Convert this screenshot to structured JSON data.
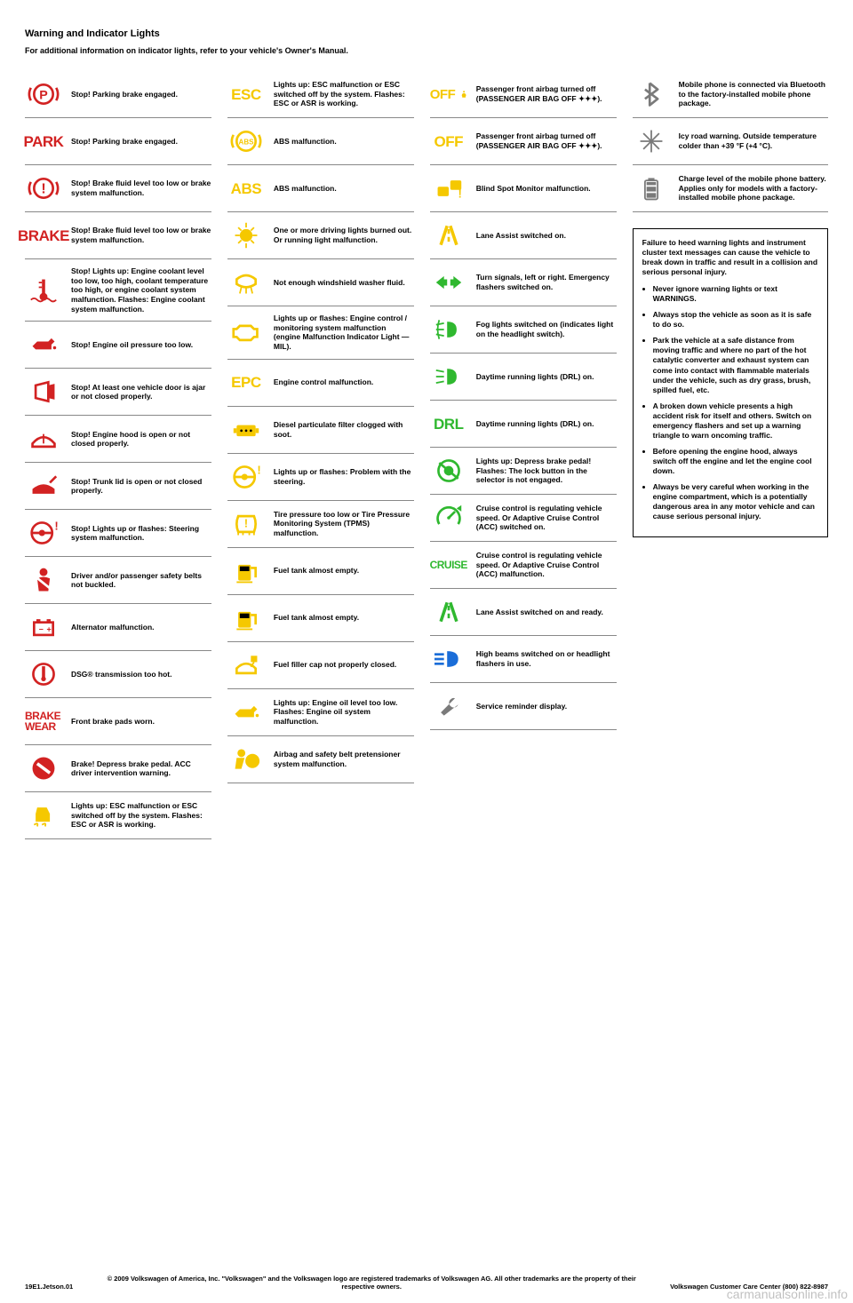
{
  "header": {
    "title": "Warning and Indicator Lights",
    "subtitle": "For additional information on indicator lights, refer to your vehicle's Owner's Manual."
  },
  "columns": [
    {
      "items": [
        {
          "color": "red",
          "icon": "parking-p-icon",
          "desc": "Stop! Parking brake engaged."
        },
        {
          "color": "red",
          "icon": "park-text-icon",
          "text": "PARK",
          "desc": "Stop! Parking brake engaged."
        },
        {
          "color": "red",
          "icon": "brake-circle-icon",
          "desc": "Stop! Brake fluid level too low or brake system malfunction."
        },
        {
          "color": "red",
          "icon": "brake-text-icon",
          "text": "BRAKE",
          "desc": "Stop! Brake fluid level too low or brake system malfunction."
        },
        {
          "color": "red",
          "icon": "coolant-temp-icon",
          "desc": "Stop! Lights up: Engine coolant level too low, too high, coolant temperature too high, or engine coolant system malfunction. Flashes: Engine coolant system malfunction."
        },
        {
          "color": "red",
          "icon": "oil-can-icon",
          "desc": "Stop! Engine oil pressure too low."
        },
        {
          "color": "red",
          "icon": "door-open-icon",
          "desc": "Stop! At least one vehicle door is ajar or not closed properly."
        },
        {
          "color": "red",
          "icon": "hood-open-icon",
          "desc": "Stop! Engine hood is open or not closed properly."
        },
        {
          "color": "red",
          "icon": "trunk-open-icon",
          "desc": "Stop! Trunk lid is open or not closed properly."
        },
        {
          "color": "red",
          "icon": "steering-wheel-icon",
          "desc": "Stop! Lights up or flashes: Steering system malfunction."
        },
        {
          "color": "red",
          "icon": "seatbelt-icon",
          "desc": "Driver and/or passenger safety belts not buckled."
        },
        {
          "color": "red",
          "icon": "battery-icon",
          "desc": "Alternator malfunction."
        },
        {
          "color": "red",
          "icon": "transmission-temp-icon",
          "desc": "DSG® transmission too hot."
        },
        {
          "color": "red",
          "icon": "brake-wear-text-icon",
          "text": "BRAKE WEAR",
          "desc": "Front brake pads worn."
        },
        {
          "color": "red",
          "icon": "acc-brake-icon",
          "desc": "Brake! Depress brake pedal. ACC driver intervention warning."
        },
        {
          "color": "yellow",
          "icon": "esc-car-icon",
          "desc": "Lights up: ESC malfunction or ESC switched off by the system. Flashes: ESC or ASR is working."
        }
      ]
    },
    {
      "items": [
        {
          "color": "yellow",
          "icon": "esc-text-icon",
          "text": "ESC",
          "desc": "Lights up: ESC malfunction or ESC switched off by the system. Flashes: ESC or ASR is working."
        },
        {
          "color": "yellow",
          "icon": "abs-circle-icon",
          "desc": "ABS malfunction."
        },
        {
          "color": "yellow",
          "icon": "abs-text-icon",
          "text": "ABS",
          "desc": "ABS malfunction."
        },
        {
          "color": "yellow",
          "icon": "bulb-icon",
          "desc": "One or more driving lights burned out. Or running light malfunction."
        },
        {
          "color": "yellow",
          "icon": "washer-fluid-icon",
          "desc": "Not enough windshield washer fluid."
        },
        {
          "color": "yellow",
          "icon": "check-engine-icon",
          "desc": "Lights up or flashes: Engine control / monitoring system malfunction (engine Malfunction Indicator Light — MIL)."
        },
        {
          "color": "yellow",
          "icon": "epc-text-icon",
          "text": "EPC",
          "desc": "Engine control malfunction."
        },
        {
          "color": "yellow",
          "icon": "dpf-icon",
          "desc": "Diesel particulate filter clogged with soot."
        },
        {
          "color": "yellow",
          "icon": "steering-yellow-icon",
          "desc": "Lights up or flashes: Problem with the steering."
        },
        {
          "color": "yellow",
          "icon": "tire-pressure-icon",
          "desc": "Tire pressure too low or Tire Pressure Monitoring System (TPMS) malfunction."
        },
        {
          "color": "yellow",
          "icon": "fuel-low-icon",
          "desc": "Fuel tank almost empty."
        },
        {
          "color": "yellow",
          "icon": "fuel-low2-icon",
          "desc": "Fuel tank almost empty."
        },
        {
          "color": "yellow",
          "icon": "fuel-cap-icon",
          "desc": "Fuel filler cap not properly closed."
        },
        {
          "color": "yellow",
          "icon": "oil-level-icon",
          "desc": "Lights up: Engine oil level too low. Flashes: Engine oil system malfunction."
        },
        {
          "color": "yellow",
          "icon": "airbag-icon",
          "desc": "Airbag and safety belt pretensioner system malfunction."
        }
      ]
    },
    {
      "items": [
        {
          "color": "yellow",
          "icon": "passenger-off-icon",
          "text": "OFF",
          "desc": "Passenger front airbag turned off (PASSENGER AIR BAG OFF ✦✦✦)."
        },
        {
          "color": "yellow",
          "icon": "passenger-off2-icon",
          "text": "OFF",
          "desc": "Passenger front airbag turned off (PASSENGER AIR BAG OFF ✦✦✦)."
        },
        {
          "color": "yellow",
          "icon": "blind-spot-icon",
          "desc": "Blind Spot Monitor malfunction."
        },
        {
          "color": "yellow",
          "icon": "lane-assist-y-icon",
          "desc": "Lane Assist switched on."
        },
        {
          "color": "green",
          "icon": "turn-signals-icon",
          "desc": "Turn signals, left or right. Emergency flashers switched on."
        },
        {
          "color": "green",
          "icon": "fog-lights-icon",
          "desc": "Fog lights switched on (indicates light on the headlight switch)."
        },
        {
          "color": "green",
          "icon": "drl-lamp-icon",
          "desc": "Daytime running lights (DRL) on."
        },
        {
          "color": "green",
          "icon": "drl-text-icon",
          "text": "DRL",
          "desc": "Daytime running lights (DRL) on."
        },
        {
          "color": "green",
          "icon": "brake-pedal-icon",
          "desc": "Lights up: Depress brake pedal! Flashes: The lock button in the selector is not engaged."
        },
        {
          "color": "green",
          "icon": "cruise-gauge-icon",
          "desc": "Cruise control is regulating vehicle speed. Or Adaptive Cruise Control (ACC) switched on."
        },
        {
          "color": "green",
          "icon": "cruise-text-icon",
          "text": "CRUISE",
          "desc": "Cruise control is regulating vehicle speed. Or Adaptive Cruise Control (ACC) malfunction."
        },
        {
          "color": "green",
          "icon": "lane-assist-g-icon",
          "desc": "Lane Assist switched on and ready."
        },
        {
          "color": "blue",
          "icon": "high-beam-icon",
          "desc": "High beams switched on or headlight flashers in use."
        },
        {
          "color": "gray",
          "icon": "wrench-icon",
          "desc": "Service reminder display."
        }
      ]
    },
    {
      "items": [
        {
          "color": "gray",
          "icon": "bluetooth-icon",
          "desc": "Mobile phone is connected via Bluetooth to the factory-installed mobile phone package."
        },
        {
          "color": "gray",
          "icon": "snowflake-icon",
          "desc": "Icy road warning. Outside temperature colder than +39 °F (+4 °C)."
        },
        {
          "color": "gray",
          "icon": "battery-level-icon",
          "desc": "Charge level of the mobile phone battery. Applies only for models with a factory-installed mobile phone package."
        }
      ],
      "warning": {
        "intro": "Failure to heed warning lights and instrument cluster text messages can cause the vehicle to break down in traffic and result in a collision and serious personal injury.",
        "bullets": [
          "Never ignore warning lights or text WARNINGS.",
          "Always stop the vehicle as soon as it is safe to do so.",
          "Park the vehicle at a safe distance from moving traffic and where no part of the hot catalytic converter and exhaust system can come into contact with flammable materials under the vehicle, such as dry grass, brush, spilled fuel, etc.",
          "A broken down vehicle presents a high accident risk for itself and others. Switch on emergency flashers and set up a warning triangle to warn oncoming traffic.",
          "Before opening the engine hood, always switch off the engine and let the engine cool down.",
          "Always be very careful when working in the engine compartment, which is a potentially dangerous area in any motor vehicle and can cause serious personal injury."
        ]
      }
    }
  ],
  "footer": {
    "left": "19E1.Jetson.01",
    "center": "© 2009 Volkswagen of America, Inc. \"Volkswagen\" and the Volkswagen logo are registered trademarks of Volkswagen AG. All other trademarks are the property of their respective owners.",
    "right_line1": "Volkswagen Customer Care Center (800) 822-8987",
    "right_line2": ""
  },
  "watermark": "carmanualsonline.info",
  "colors": {
    "red": "#d22222",
    "yellow": "#f5c800",
    "green": "#2fb82f",
    "blue": "#1a6dd8",
    "gray": "#7a7a7a"
  }
}
